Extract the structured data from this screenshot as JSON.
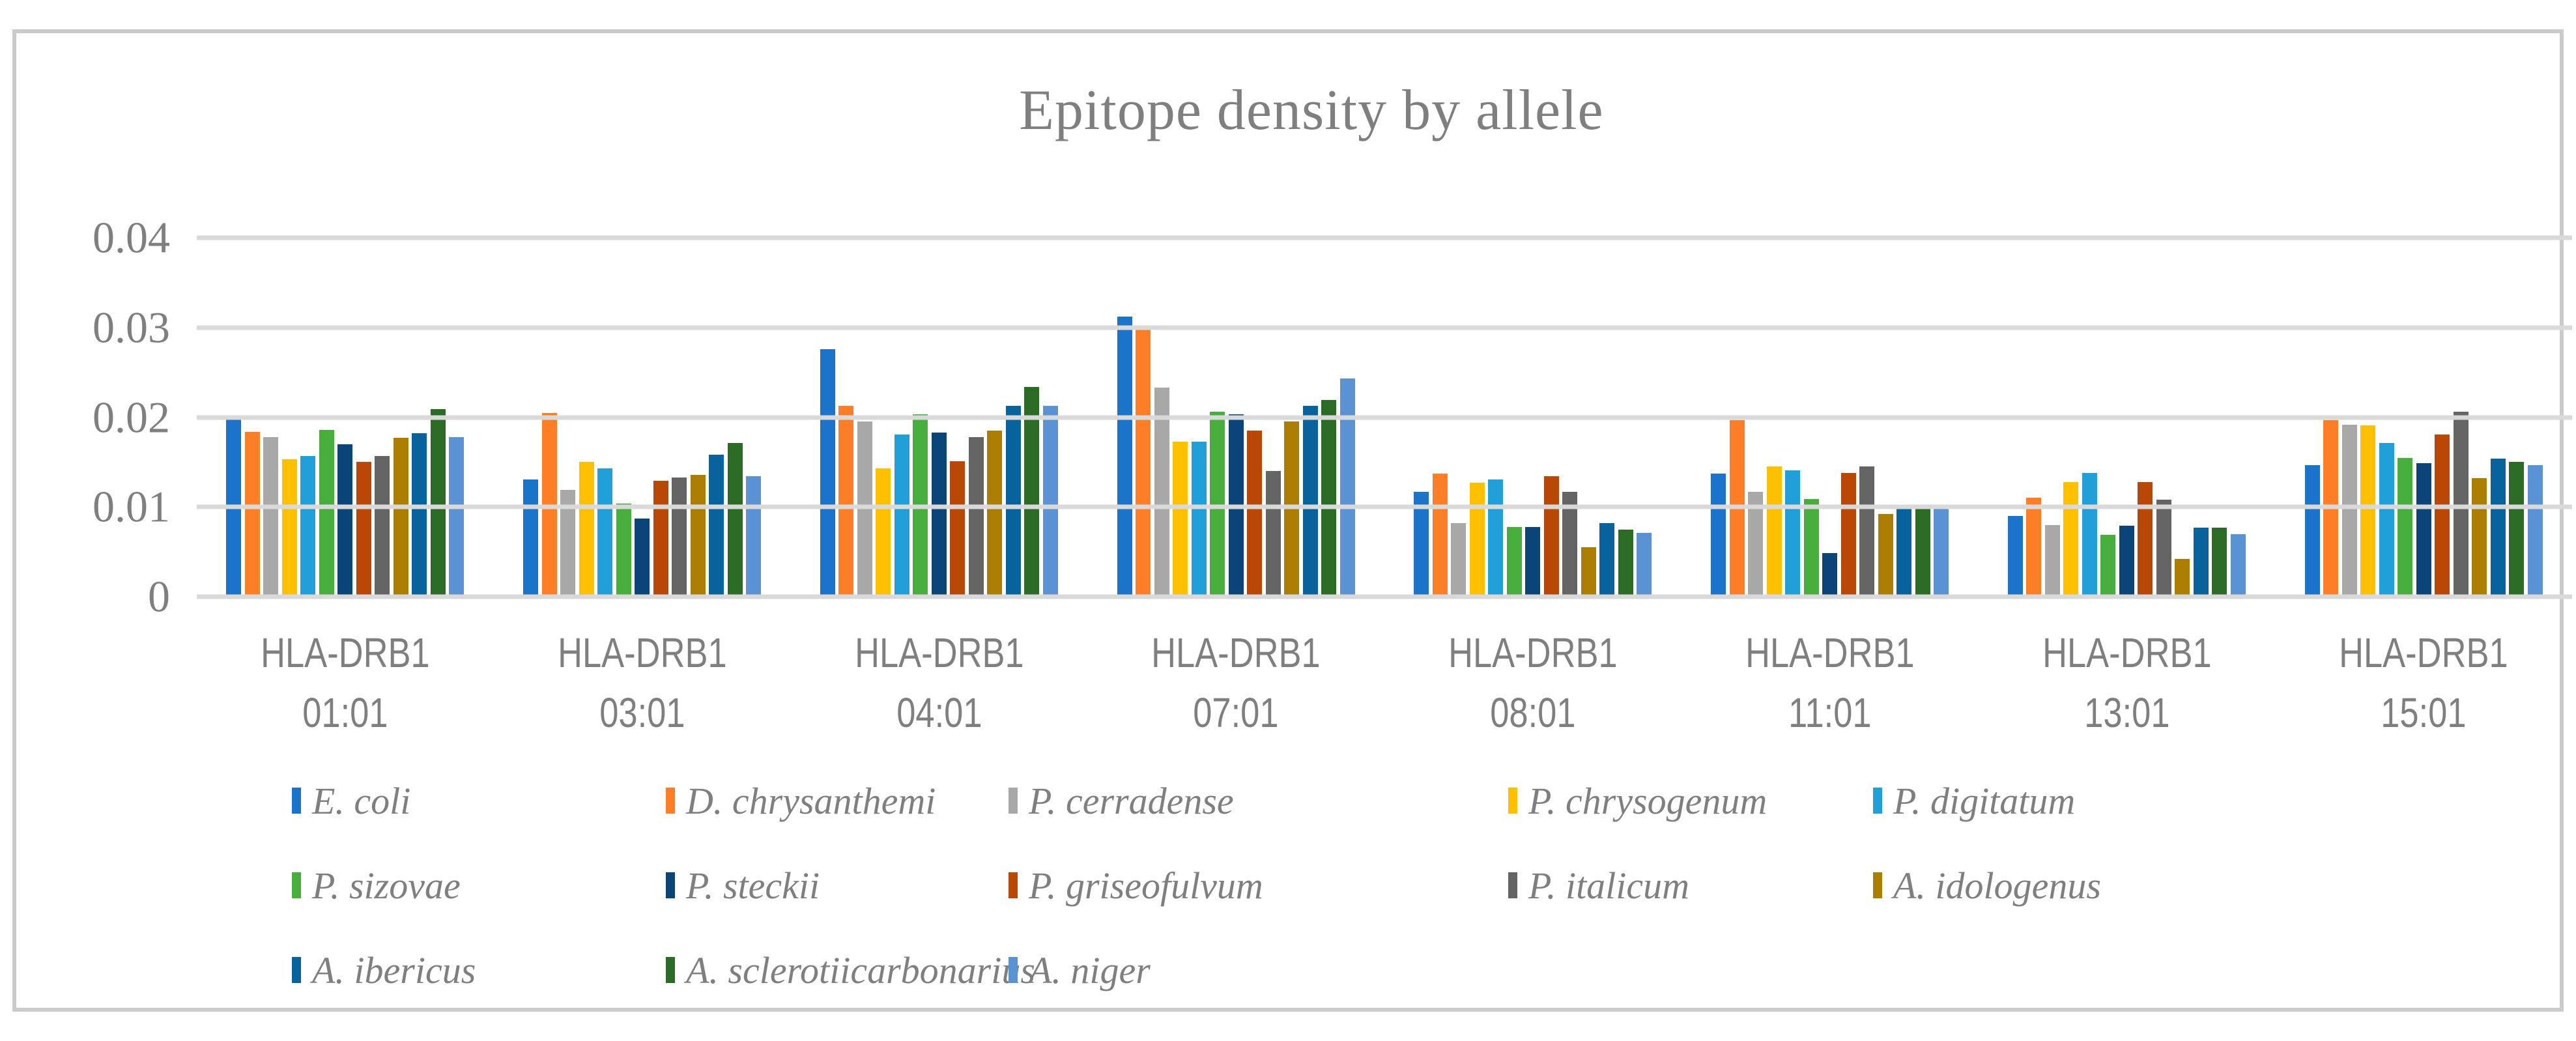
{
  "title": "Epitope density by allele",
  "frame_border_color": "#cbcbcb",
  "gridline_color": "#d9d9d9",
  "text_color": "#7f7f7f",
  "chart_data": {
    "type": "bar",
    "title": "Epitope density by allele",
    "xlabel": "",
    "ylabel": "",
    "ylim": [
      0,
      0.04
    ],
    "y_ticks": [
      0,
      0.01,
      0.02,
      0.03,
      0.04
    ],
    "y_tick_labels": [
      "0",
      "0.01",
      "0.02",
      "0.03",
      "0.04"
    ],
    "grid": true,
    "legend_position": "bottom",
    "categories": [
      "HLA-DRB1\n01:01",
      "HLA-DRB1\n03:01",
      "HLA-DRB1\n04:01",
      "HLA-DRB1\n07:01",
      "HLA-DRB1\n08:01",
      "HLA-DRB1\n11:01",
      "HLA-DRB1\n13:01",
      "HLA-DRB1\n15:01"
    ],
    "series": [
      {
        "name": "E. coli",
        "color": "#1b74c9",
        "values": [
          0.0201,
          0.0131,
          0.0276,
          0.0312,
          0.0117,
          0.0137,
          0.009,
          0.0147
        ]
      },
      {
        "name": "D. chrysanthemi",
        "color": "#fd7e27",
        "values": [
          0.0184,
          0.0205,
          0.0213,
          0.0302,
          0.0137,
          0.0197,
          0.011,
          0.0197
        ]
      },
      {
        "name": "P. cerradense",
        "color": "#a8a8a8",
        "values": [
          0.0178,
          0.0119,
          0.0195,
          0.0233,
          0.0082,
          0.0117,
          0.008,
          0.0192
        ]
      },
      {
        "name": "P. chrysogenum",
        "color": "#ffc001",
        "values": [
          0.0153,
          0.015,
          0.0143,
          0.0173,
          0.0127,
          0.0145,
          0.0128,
          0.0191
        ]
      },
      {
        "name": "P. digitatum",
        "color": "#219fd8",
        "values": [
          0.0157,
          0.0143,
          0.0181,
          0.0173,
          0.0131,
          0.0141,
          0.0138,
          0.0171
        ]
      },
      {
        "name": "P. sizovae",
        "color": "#47ad3d",
        "values": [
          0.0186,
          0.0104,
          0.0203,
          0.0206,
          0.0078,
          0.0109,
          0.0069,
          0.0155
        ]
      },
      {
        "name": "P. steckii",
        "color": "#0a4478",
        "values": [
          0.017,
          0.0087,
          0.0183,
          0.0203,
          0.0078,
          0.0049,
          0.0079,
          0.0149
        ]
      },
      {
        "name": "P. griseofulvum",
        "color": "#b94708",
        "values": [
          0.015,
          0.0129,
          0.0151,
          0.0185,
          0.0134,
          0.0138,
          0.0128,
          0.0181
        ]
      },
      {
        "name": "P. italicum",
        "color": "#646464",
        "values": [
          0.0157,
          0.0133,
          0.0178,
          0.014,
          0.0117,
          0.0145,
          0.0108,
          0.0206
        ]
      },
      {
        "name": "A. idologenus",
        "color": "#ab7d03",
        "values": [
          0.0177,
          0.0136,
          0.0185,
          0.0195,
          0.0055,
          0.0092,
          0.0042,
          0.0132
        ]
      },
      {
        "name": "A. ibericus",
        "color": "#08629c",
        "values": [
          0.0182,
          0.0158,
          0.0213,
          0.0213,
          0.0082,
          0.0099,
          0.0077,
          0.0154
        ]
      },
      {
        "name": "A. sclerotiicarbonarius",
        "color": "#2c6b26",
        "values": [
          0.0209,
          0.0171,
          0.0234,
          0.0219,
          0.0075,
          0.0099,
          0.0077,
          0.015
        ]
      },
      {
        "name": "A. niger",
        "color": "#5b92d4",
        "values": [
          0.0178,
          0.0134,
          0.0213,
          0.0243,
          0.0071,
          0.01,
          0.007,
          0.0147
        ]
      }
    ]
  },
  "legend": {
    "rows": [
      [
        0,
        1,
        2,
        3,
        4
      ],
      [
        5,
        6,
        7,
        8,
        9
      ],
      [
        10,
        11,
        12
      ]
    ]
  }
}
